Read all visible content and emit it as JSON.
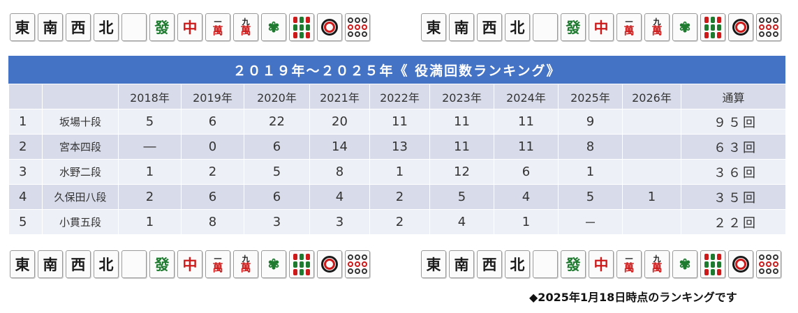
{
  "tile_rows": [
    [
      "東",
      "南",
      "西",
      "北",
      "",
      "發",
      "中",
      "一萬",
      "九萬",
      "一索",
      "九索",
      "一筒",
      "九筒"
    ]
  ],
  "title": "２０１９年～２０２５年《 役満回数ランキング》",
  "columns": [
    "",
    "",
    "2018年",
    "2019年",
    "2020年",
    "2021年",
    "2022年",
    "2023年",
    "2024年",
    "2025年",
    "2026年",
    "通算"
  ],
  "rows": [
    {
      "rank": "1",
      "name": "坂場十段",
      "v": [
        "5",
        "6",
        "22",
        "20",
        "11",
        "11",
        "11",
        "9",
        ""
      ],
      "total": "９５回"
    },
    {
      "rank": "2",
      "name": "宮本四段",
      "v": [
        "―",
        "0",
        "6",
        "14",
        "13",
        "11",
        "11",
        "8",
        ""
      ],
      "total": "６３回"
    },
    {
      "rank": "3",
      "name": "水野二段",
      "v": [
        "1",
        "2",
        "5",
        "8",
        "1",
        "12",
        "6",
        "1",
        ""
      ],
      "total": "３６回"
    },
    {
      "rank": "4",
      "name": "久保田八段",
      "v": [
        "2",
        "6",
        "6",
        "4",
        "2",
        "5",
        "4",
        "5",
        "1"
      ],
      "total": "３５回"
    },
    {
      "rank": "5",
      "name": "小貫五段",
      "v": [
        "1",
        "8",
        "3",
        "3",
        "2",
        "4",
        "1",
        "－",
        ""
      ],
      "total": "２２回"
    }
  ],
  "note": "◆2025年1月18日時点のランキングです",
  "colors": {
    "header_bar": "#4472c4",
    "row_dark": "#d8dcea",
    "row_light": "#eef0f7",
    "green": "#1d7a2e",
    "red": "#cc1a1a"
  }
}
